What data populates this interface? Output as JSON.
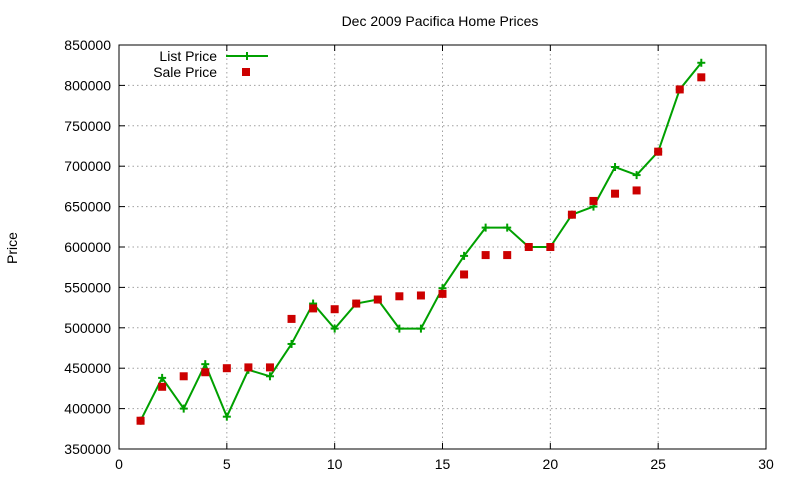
{
  "chart_data": {
    "type": "line",
    "title": "Dec 2009 Pacifica Home Prices",
    "xlabel": "",
    "ylabel": "Price",
    "xlim": [
      0,
      30
    ],
    "ylim": [
      350000,
      850000
    ],
    "x_ticks": [
      0,
      5,
      10,
      15,
      20,
      25,
      30
    ],
    "y_ticks": [
      350000,
      400000,
      450000,
      500000,
      550000,
      600000,
      650000,
      700000,
      750000,
      800000,
      850000
    ],
    "grid": true,
    "legend": "top-left",
    "series": [
      {
        "name": "List Price",
        "style": "line-with-plus-markers",
        "color": "#00a000",
        "x": [
          1,
          2,
          3,
          4,
          5,
          6,
          7,
          8,
          9,
          10,
          11,
          12,
          13,
          14,
          15,
          16,
          17,
          18,
          19,
          20,
          21,
          22,
          23,
          24,
          25,
          26,
          27
        ],
        "values": [
          385000,
          438000,
          400000,
          455000,
          390000,
          448000,
          440000,
          480000,
          530000,
          499000,
          530000,
          535000,
          499000,
          499000,
          549000,
          589000,
          624000,
          624000,
          600000,
          600000,
          640000,
          650000,
          699000,
          689000,
          718000,
          795000,
          828000
        ]
      },
      {
        "name": "Sale Price",
        "style": "square-markers",
        "color": "#cc0000",
        "x": [
          1,
          2,
          3,
          4,
          5,
          6,
          7,
          8,
          9,
          10,
          11,
          12,
          13,
          14,
          15,
          16,
          17,
          18,
          19,
          20,
          21,
          22,
          23,
          24,
          25,
          26,
          27
        ],
        "values": [
          385000,
          427000,
          440000,
          445000,
          450000,
          451000,
          451000,
          511000,
          524000,
          523000,
          530000,
          535000,
          539000,
          540000,
          542000,
          566000,
          590000,
          590000,
          600000,
          600000,
          640000,
          657000,
          666000,
          670000,
          718000,
          795000,
          810000
        ]
      }
    ]
  }
}
